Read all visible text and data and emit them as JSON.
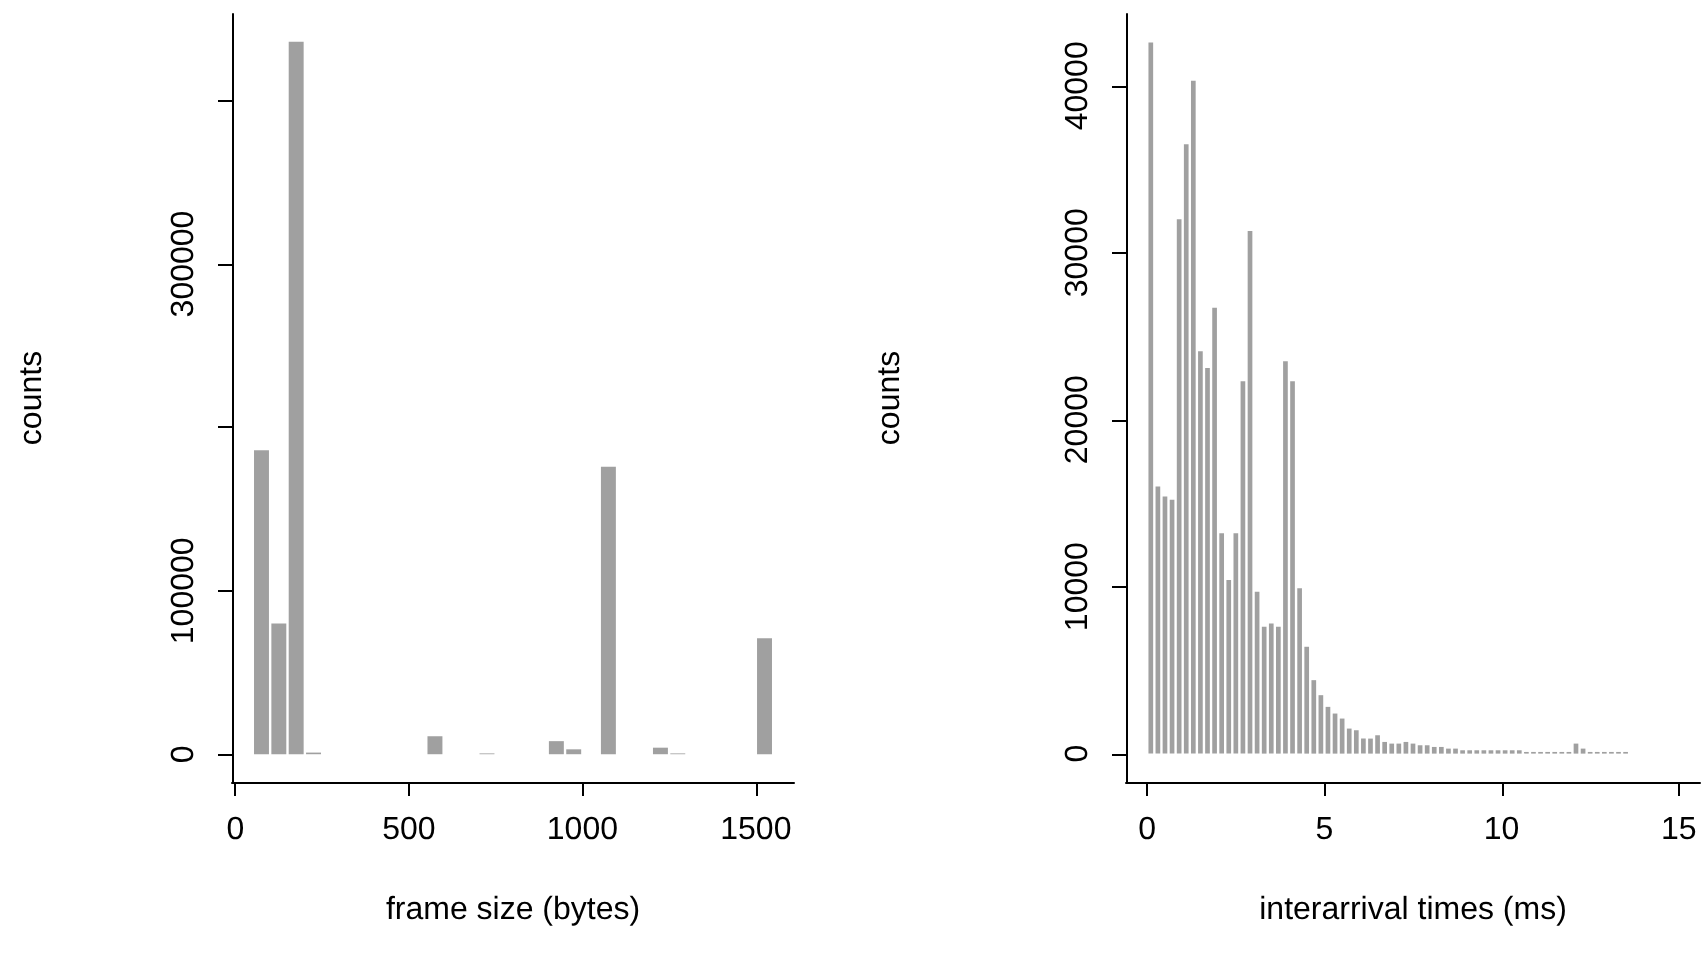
{
  "chart_data": [
    {
      "type": "histogram",
      "xlabel": "frame size (bytes)",
      "ylabel": "counts",
      "color": "#a0a0a0",
      "bins": [
        50,
        100,
        150,
        200,
        250,
        300,
        350,
        400,
        450,
        500,
        550,
        600,
        650,
        700,
        750,
        800,
        850,
        900,
        950,
        1000,
        1050,
        1100,
        1150,
        1200,
        1250,
        1300,
        1350,
        1400,
        1450,
        1500,
        1550
      ],
      "values": [
        186000,
        80000,
        436000,
        1000,
        0,
        0,
        0,
        0,
        0,
        0,
        11000,
        0,
        0,
        500,
        0,
        0,
        0,
        8000,
        3000,
        0,
        176000,
        0,
        0,
        4000,
        500,
        0,
        0,
        0,
        0,
        71000
      ],
      "xlim": [
        -10,
        1610
      ],
      "xticks": [
        0,
        500,
        1000,
        1500
      ],
      "ylim": [
        -17000,
        453000
      ],
      "yticks": [
        0,
        100000,
        {
          "value": 200000,
          "label": null
        },
        300000,
        {
          "value": 400000,
          "label": null
        }
      ]
    },
    {
      "type": "histogram",
      "xlabel": "interarrival times (ms)",
      "ylabel": "counts",
      "color": "#a0a0a0",
      "bins": [
        0,
        0.2,
        0.4,
        0.6,
        0.8,
        1,
        1.2,
        1.4,
        1.6,
        1.8,
        2,
        2.2,
        2.4,
        2.6,
        2.8,
        3,
        3.2,
        3.4,
        3.6,
        3.8,
        4,
        4.2,
        4.4,
        4.6,
        4.8,
        5,
        5.2,
        5.4,
        5.6,
        5.8,
        6,
        6.2,
        6.4,
        6.6,
        6.8,
        7,
        7.2,
        7.4,
        7.6,
        7.8,
        8,
        8.2,
        8.4,
        8.6,
        8.8,
        9,
        9.2,
        9.4,
        9.6,
        9.8,
        10,
        10.2,
        10.4,
        10.6,
        10.8,
        11,
        11.2,
        11.4,
        11.6,
        11.8,
        12,
        12.2,
        12.4,
        12.6,
        12.8,
        13,
        13.2,
        13.4,
        13.6,
        13.8,
        14,
        14.2,
        14.4,
        14.6,
        14.8,
        15
      ],
      "values": [
        42600,
        16000,
        15400,
        15200,
        32000,
        36500,
        40300,
        24100,
        23100,
        26700,
        13200,
        10400,
        13200,
        22300,
        31300,
        9700,
        7600,
        7800,
        7600,
        23500,
        22300,
        9900,
        6400,
        4400,
        3500,
        2800,
        2400,
        2100,
        1500,
        1400,
        900,
        900,
        1100,
        700,
        600,
        600,
        700,
        600,
        500,
        500,
        400,
        400,
        300,
        300,
        200,
        200,
        200,
        200,
        200,
        200,
        200,
        200,
        200,
        100,
        100,
        100,
        100,
        100,
        100,
        100,
        600,
        300,
        100,
        100,
        100,
        100,
        100,
        100,
        0,
        0,
        0,
        0,
        0,
        0,
        0
      ],
      "xlim": [
        -0.6,
        15.6
      ],
      "xticks": [
        0,
        5,
        10,
        15
      ],
      "ylim": [
        -1700,
        44300
      ],
      "yticks": [
        0,
        10000,
        20000,
        30000,
        40000
      ]
    }
  ]
}
